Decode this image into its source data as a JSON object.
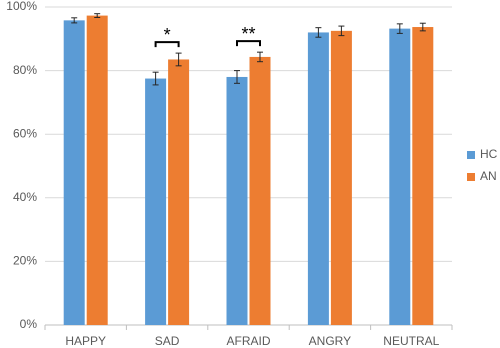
{
  "chart_data": {
    "type": "bar",
    "categories": [
      "HAPPY",
      "SAD",
      "AFRAID",
      "ANGRY",
      "NEUTRAL"
    ],
    "series": [
      {
        "name": "HC",
        "color": "#5b9bd5",
        "values": [
          95.8,
          77.5,
          78,
          92,
          93.2
        ],
        "errors": [
          0.8,
          2,
          2,
          1.5,
          1.5
        ]
      },
      {
        "name": "AN",
        "color": "#ed7d31",
        "values": [
          97.3,
          83.5,
          84.3,
          92.5,
          93.7
        ],
        "errors": [
          0.6,
          2,
          1.5,
          1.5,
          1.2
        ]
      }
    ],
    "ylim": [
      0,
      100
    ],
    "yticks": [
      {
        "value": 0,
        "label": "0%"
      },
      {
        "value": 20,
        "label": "20%"
      },
      {
        "value": 40,
        "label": "40%"
      },
      {
        "value": 60,
        "label": "60%"
      },
      {
        "value": 80,
        "label": "80%"
      },
      {
        "value": 100,
        "label": "100%"
      }
    ],
    "grid": true,
    "legend": "right",
    "annotations": [
      {
        "text": "*",
        "category": "SAD"
      },
      {
        "text": "**",
        "category": "AFRAID"
      }
    ]
  }
}
